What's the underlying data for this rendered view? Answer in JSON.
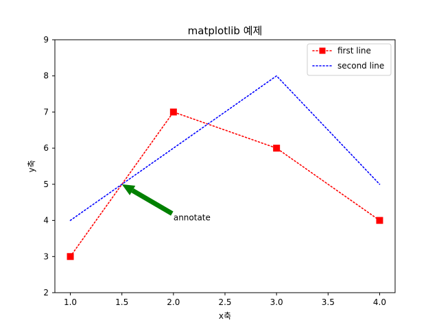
{
  "chart_data": {
    "type": "line",
    "title": "matplotlib 예제",
    "xlabel": "x축",
    "ylabel": "y축",
    "xlim": [
      0.85,
      4.15
    ],
    "ylim": [
      2,
      9
    ],
    "xticks": [
      "1.0",
      "1.5",
      "2.0",
      "2.5",
      "3.0",
      "3.5",
      "4.0"
    ],
    "yticks": [
      "2",
      "3",
      "4",
      "5",
      "6",
      "7",
      "8",
      "9"
    ],
    "grid": false,
    "legend_position": "top-right",
    "series": [
      {
        "name": "first line",
        "x": [
          1,
          2,
          3,
          4
        ],
        "y": [
          3,
          7,
          6,
          4
        ],
        "color": "#ff0000",
        "linestyle": "dotted",
        "marker": "square"
      },
      {
        "name": "second line",
        "x": [
          1,
          3,
          4
        ],
        "y": [
          4,
          8,
          5
        ],
        "color": "#0000ff",
        "linestyle": "dotted",
        "marker": "none"
      }
    ],
    "annotation": {
      "text": "annotate",
      "xy": [
        1.5,
        5
      ],
      "xytext": [
        2,
        4
      ],
      "arrow_color": "#008000"
    }
  }
}
